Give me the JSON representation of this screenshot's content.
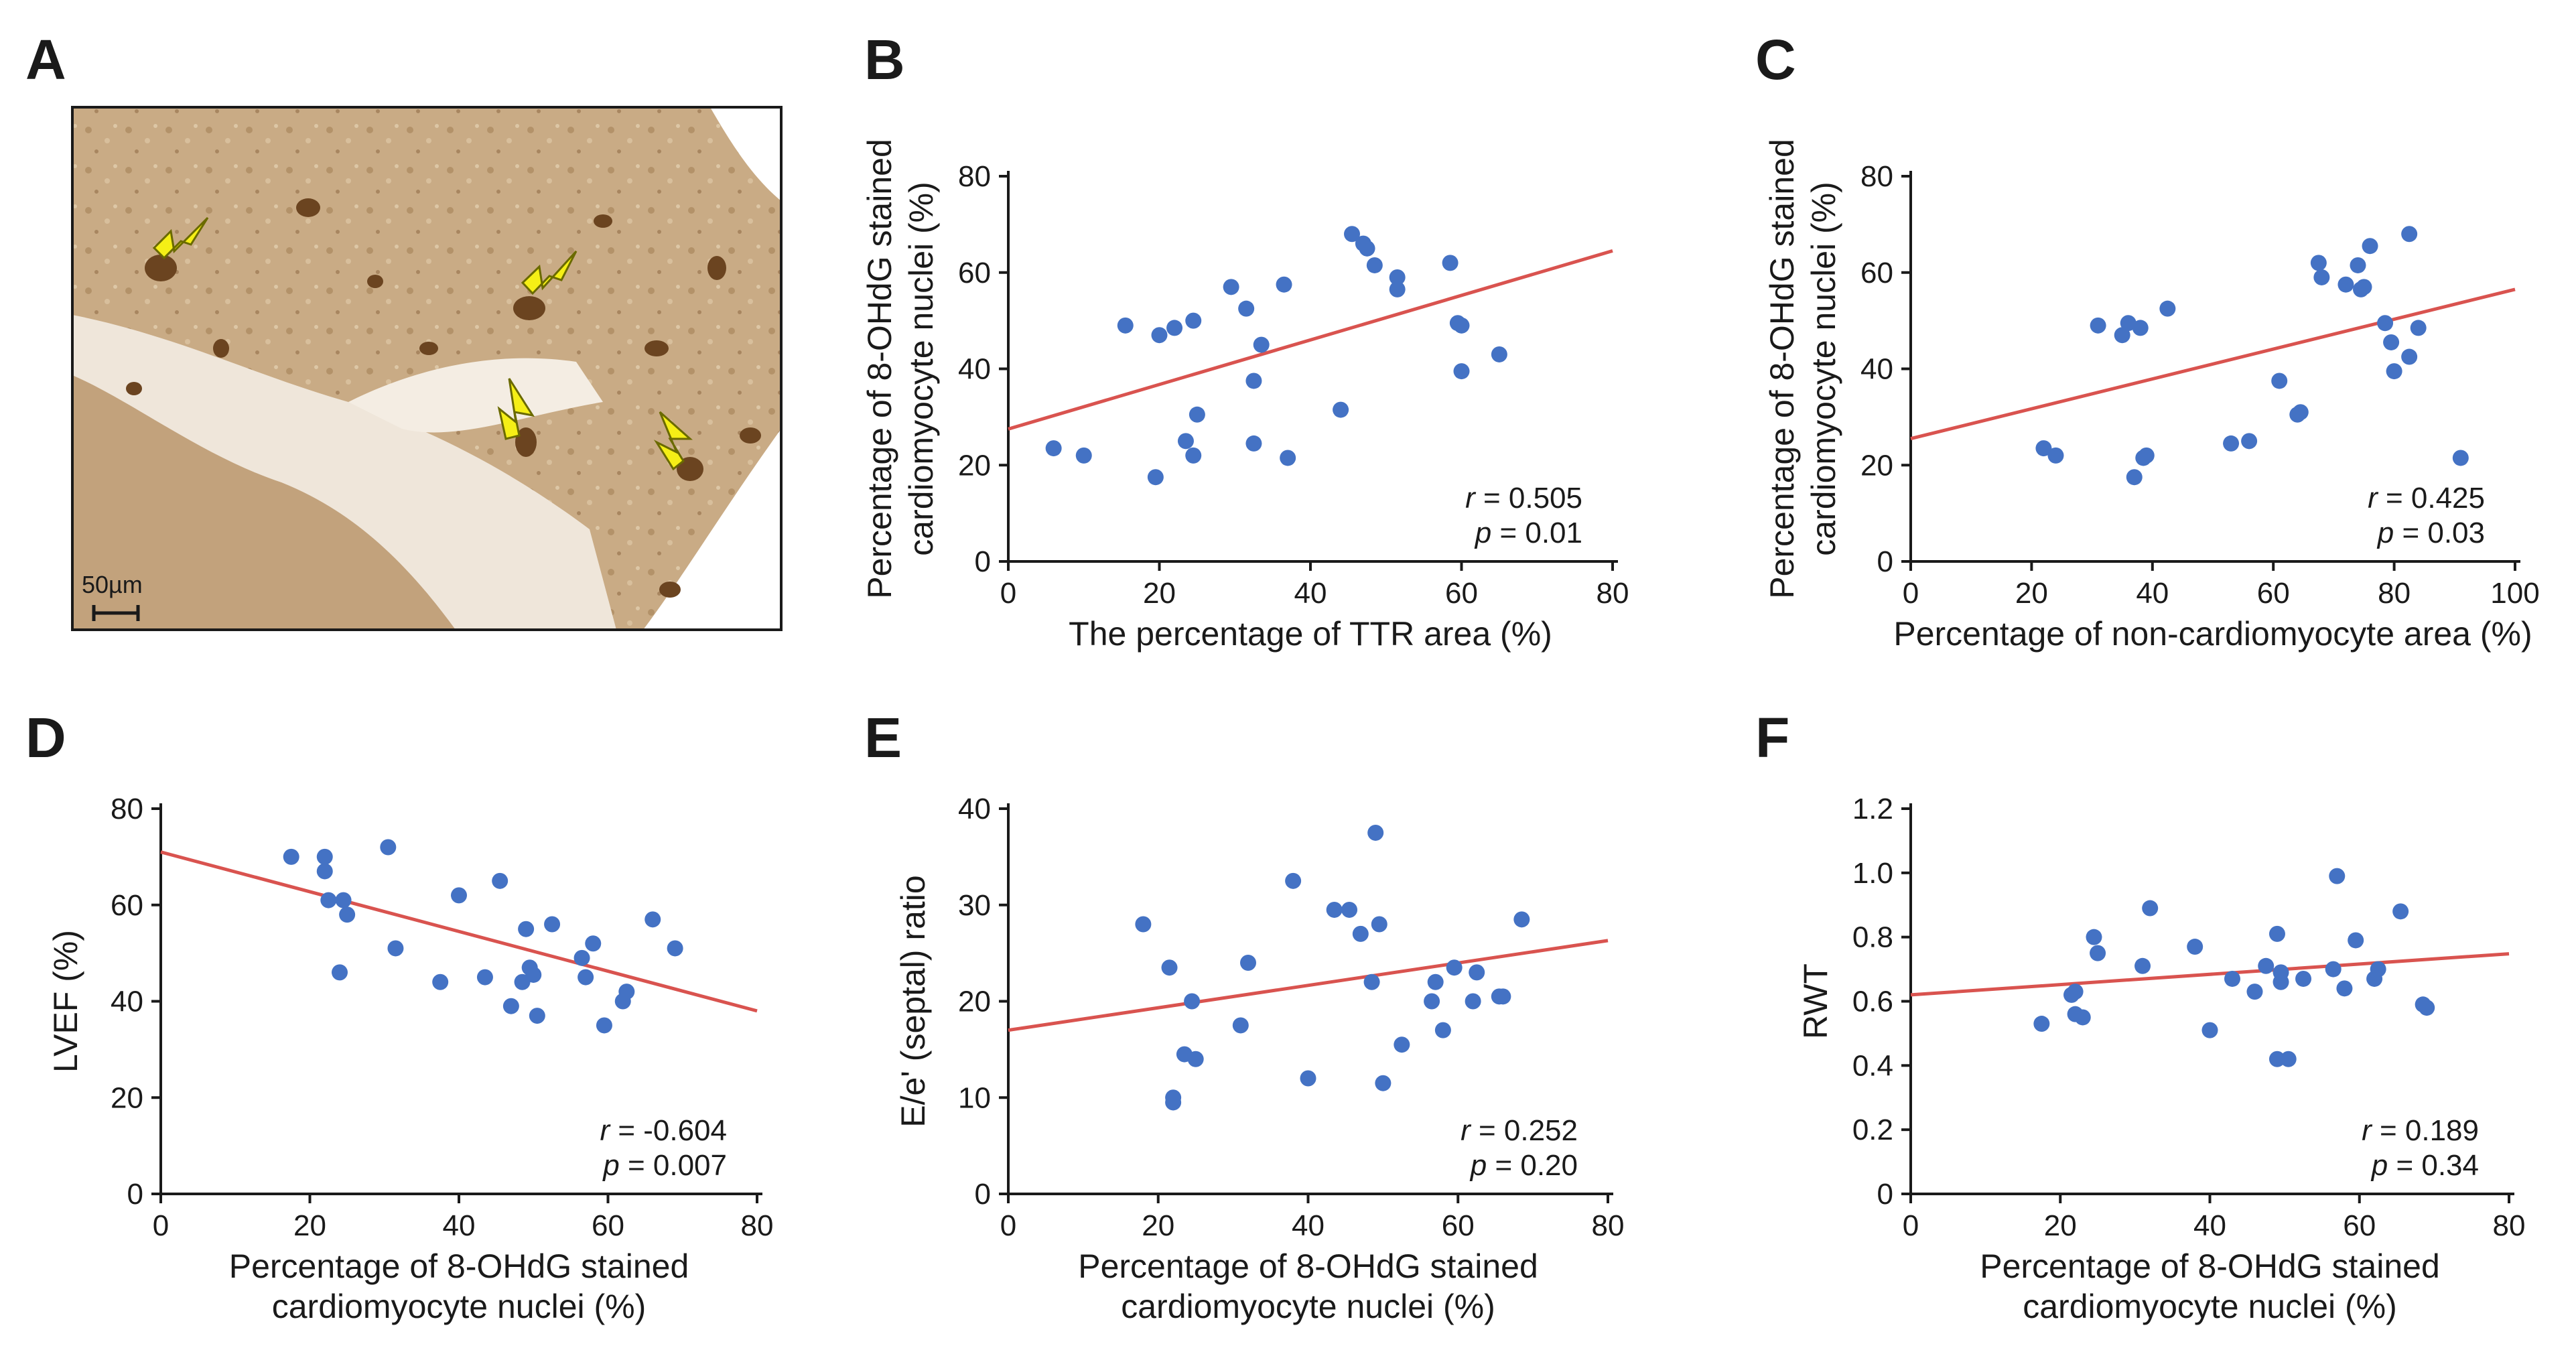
{
  "colors": {
    "point": "#4472c4",
    "fit": "#d9534f",
    "axis": "#1a1a1a",
    "arrow": "#f5ef16"
  },
  "panel_a": {
    "letter": "A",
    "scalebar_label": "50µm",
    "image_description_icon": "histology-stain-image"
  },
  "chart_data": [
    {
      "id": "B",
      "letter": "B",
      "type": "scatter",
      "xlabel": [
        "The percentage of TTR area (%)"
      ],
      "ylabel": [
        "Percentage of 8-OHdG stained",
        "cardiomyocyte nuclei (%)"
      ],
      "xlim": [
        0,
        80
      ],
      "ylim": [
        0,
        80
      ],
      "xticks": [
        0,
        20,
        40,
        60,
        80
      ],
      "yticks": [
        0,
        20,
        40,
        60,
        80
      ],
      "tick_labels_x": [
        "0",
        "20",
        "40",
        "60",
        "80"
      ],
      "tick_labels_y": [
        "0",
        "20",
        "40",
        "60",
        "80"
      ],
      "stats": {
        "r_label": "r",
        "r": "= 0.505",
        "p_label": "p",
        "p": "= 0.01"
      },
      "fit": {
        "slope": 0.4625,
        "intercept": 27.5
      },
      "points": [
        [
          6,
          23.5
        ],
        [
          10,
          22
        ],
        [
          15.5,
          49
        ],
        [
          19.5,
          17.5
        ],
        [
          20,
          47
        ],
        [
          22,
          48.5
        ],
        [
          23.5,
          25
        ],
        [
          24.5,
          22
        ],
        [
          24.5,
          50
        ],
        [
          25,
          30.5
        ],
        [
          29.5,
          57
        ],
        [
          31.5,
          52.5
        ],
        [
          32.5,
          37.5
        ],
        [
          32.5,
          24.5
        ],
        [
          33.5,
          45
        ],
        [
          36.5,
          57.5
        ],
        [
          37,
          21.5
        ],
        [
          44,
          31.5
        ],
        [
          45.5,
          68
        ],
        [
          47,
          66
        ],
        [
          47.5,
          65
        ],
        [
          48.5,
          61.5
        ],
        [
          51.5,
          59
        ],
        [
          51.5,
          56.5
        ],
        [
          58.5,
          62
        ],
        [
          59.5,
          49.5
        ],
        [
          60,
          49
        ],
        [
          60,
          39.5
        ],
        [
          65,
          43
        ]
      ]
    },
    {
      "id": "C",
      "letter": "C",
      "type": "scatter",
      "xlabel": [
        "Percentage of non-cardiomyocyte area (%)"
      ],
      "ylabel": [
        "Percentage of 8-OHdG stained",
        "cardiomyocyte nuclei (%)"
      ],
      "xlim": [
        0,
        100
      ],
      "ylim": [
        0,
        80
      ],
      "xticks": [
        0,
        20,
        40,
        60,
        80,
        100
      ],
      "yticks": [
        0,
        20,
        40,
        60,
        80
      ],
      "tick_labels_x": [
        "0",
        "20",
        "40",
        "60",
        "80",
        "100"
      ],
      "tick_labels_y": [
        "0",
        "20",
        "40",
        "60",
        "80"
      ],
      "stats": {
        "r_label": "r",
        "r": "= 0.425",
        "p_label": "p",
        "p": "= 0.03"
      },
      "fit": {
        "slope": 0.31,
        "intercept": 25.5
      },
      "points": [
        [
          22,
          23.5
        ],
        [
          24,
          22
        ],
        [
          31,
          49
        ],
        [
          35,
          47
        ],
        [
          36,
          49.5
        ],
        [
          37,
          17.5
        ],
        [
          38,
          48.5
        ],
        [
          38.5,
          21.5
        ],
        [
          39,
          22
        ],
        [
          42.5,
          52.5
        ],
        [
          53,
          24.5
        ],
        [
          56,
          25
        ],
        [
          61,
          37.5
        ],
        [
          64,
          30.5
        ],
        [
          64.5,
          31
        ],
        [
          67.5,
          62
        ],
        [
          68,
          59
        ],
        [
          72,
          57.5
        ],
        [
          74,
          61.5
        ],
        [
          74.5,
          56.5
        ],
        [
          75,
          57
        ],
        [
          76,
          65.5
        ],
        [
          78.5,
          49.5
        ],
        [
          79.5,
          45.5
        ],
        [
          80,
          39.5
        ],
        [
          82.5,
          68
        ],
        [
          82.5,
          42.5
        ],
        [
          84,
          48.5
        ],
        [
          91,
          21.5
        ]
      ]
    },
    {
      "id": "D",
      "letter": "D",
      "type": "scatter",
      "xlabel": [
        "Percentage of 8-OHdG stained",
        "cardiomyocyte nuclei (%)"
      ],
      "ylabel": [
        "LVEF (%)"
      ],
      "xlim": [
        0,
        80
      ],
      "ylim": [
        0,
        80
      ],
      "xticks": [
        0,
        20,
        40,
        60,
        80
      ],
      "yticks": [
        0,
        20,
        40,
        60,
        80
      ],
      "tick_labels_x": [
        "0",
        "20",
        "40",
        "60",
        "80"
      ],
      "tick_labels_y": [
        "0",
        "20",
        "40",
        "60",
        "80"
      ],
      "stats": {
        "r_label": "r",
        "r": "= -0.604",
        "p_label": "p",
        "p": "= 0.007"
      },
      "fit": {
        "slope": -0.4125,
        "intercept": 71
      },
      "points": [
        [
          17.5,
          70
        ],
        [
          22,
          70
        ],
        [
          22,
          67
        ],
        [
          22.5,
          61
        ],
        [
          24,
          46
        ],
        [
          24.5,
          61
        ],
        [
          25,
          58
        ],
        [
          30.5,
          72
        ],
        [
          31.5,
          51
        ],
        [
          37.5,
          44
        ],
        [
          40,
          62
        ],
        [
          43.5,
          45
        ],
        [
          45.5,
          65
        ],
        [
          47,
          39
        ],
        [
          48.5,
          44
        ],
        [
          49,
          55
        ],
        [
          49.5,
          47
        ],
        [
          50,
          45.5
        ],
        [
          50.5,
          37
        ],
        [
          52.5,
          56
        ],
        [
          56.5,
          49
        ],
        [
          57,
          45
        ],
        [
          58,
          52
        ],
        [
          59.5,
          35
        ],
        [
          62,
          40
        ],
        [
          62.5,
          42
        ],
        [
          66,
          57
        ],
        [
          69,
          51
        ]
      ]
    },
    {
      "id": "E",
      "letter": "E",
      "type": "scatter",
      "xlabel": [
        "Percentage of 8-OHdG stained",
        "cardiomyocyte nuclei (%)"
      ],
      "ylabel": [
        "E/e' (septal) ratio"
      ],
      "xlim": [
        0,
        80
      ],
      "ylim": [
        0,
        40
      ],
      "xticks": [
        0,
        20,
        40,
        60,
        80
      ],
      "yticks": [
        0,
        10,
        20,
        30,
        40
      ],
      "tick_labels_x": [
        "0",
        "20",
        "40",
        "60",
        "80"
      ],
      "tick_labels_y": [
        "0",
        "10",
        "20",
        "30",
        "40"
      ],
      "stats": {
        "r_label": "r",
        "r": "= 0.252",
        "p_label": "p",
        "p": "= 0.20"
      },
      "fit": {
        "slope": 0.1163,
        "intercept": 17
      },
      "points": [
        [
          18,
          28
        ],
        [
          21.5,
          23.5
        ],
        [
          22,
          9.5
        ],
        [
          22,
          10
        ],
        [
          23.5,
          14.5
        ],
        [
          24.5,
          20
        ],
        [
          25,
          14
        ],
        [
          31,
          17.5
        ],
        [
          32,
          24
        ],
        [
          38,
          32.5
        ],
        [
          40,
          12
        ],
        [
          43.5,
          29.5
        ],
        [
          45.5,
          29.5
        ],
        [
          47,
          27
        ],
        [
          48.5,
          22
        ],
        [
          49,
          37.5
        ],
        [
          49.5,
          28
        ],
        [
          50,
          11.5
        ],
        [
          52.5,
          15.5
        ],
        [
          56.5,
          20
        ],
        [
          57,
          22
        ],
        [
          58,
          17
        ],
        [
          59.5,
          23.5
        ],
        [
          62,
          20
        ],
        [
          62.5,
          23
        ],
        [
          65.5,
          20.5
        ],
        [
          66,
          20.5
        ],
        [
          68.5,
          28.5
        ]
      ]
    },
    {
      "id": "F",
      "letter": "F",
      "type": "scatter",
      "xlabel": [
        "Percentage of 8-OHdG stained",
        "cardiomyocyte nuclei (%)"
      ],
      "ylabel": [
        "RWT"
      ],
      "xlim": [
        0,
        80
      ],
      "ylim": [
        0,
        1.2
      ],
      "xticks": [
        0,
        20,
        40,
        60,
        80
      ],
      "yticks": [
        0,
        0.2,
        0.4,
        0.6,
        0.8,
        1.0,
        1.2
      ],
      "tick_labels_x": [
        "0",
        "20",
        "40",
        "60",
        "80"
      ],
      "tick_labels_y": [
        "0",
        "0.2",
        "0.4",
        "0.6",
        "0.8",
        "1.0",
        "1.2"
      ],
      "stats": {
        "r_label": "r",
        "r": "= 0.189",
        "p_label": "p",
        "p": "= 0.34"
      },
      "fit": {
        "slope": 0.0016,
        "intercept": 0.62
      },
      "points": [
        [
          17.5,
          0.53
        ],
        [
          21.5,
          0.62
        ],
        [
          22,
          0.63
        ],
        [
          22,
          0.56
        ],
        [
          23,
          0.55
        ],
        [
          24.5,
          0.8
        ],
        [
          25,
          0.75
        ],
        [
          31,
          0.71
        ],
        [
          32,
          0.89
        ],
        [
          38,
          0.77
        ],
        [
          40,
          0.51
        ],
        [
          43,
          0.67
        ],
        [
          46,
          0.63
        ],
        [
          47.5,
          0.71
        ],
        [
          49,
          0.42
        ],
        [
          49,
          0.81
        ],
        [
          49.5,
          0.69
        ],
        [
          49.5,
          0.66
        ],
        [
          50.5,
          0.42
        ],
        [
          52.5,
          0.67
        ],
        [
          56.5,
          0.7
        ],
        [
          57,
          0.99
        ],
        [
          58,
          0.64
        ],
        [
          59.5,
          0.79
        ],
        [
          62,
          0.67
        ],
        [
          62.5,
          0.7
        ],
        [
          65.5,
          0.88
        ],
        [
          68.5,
          0.59
        ],
        [
          69,
          0.58
        ]
      ]
    }
  ]
}
